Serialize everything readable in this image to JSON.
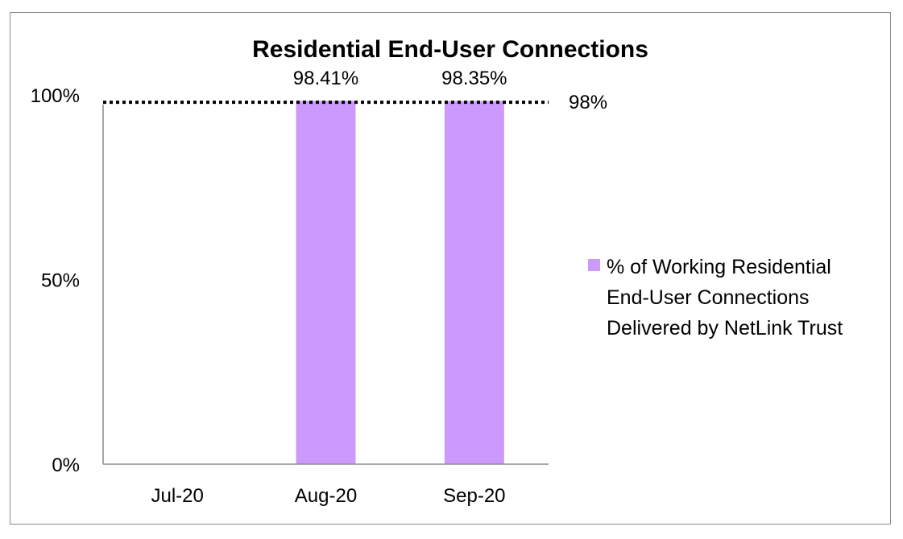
{
  "chart_data": {
    "type": "bar",
    "title": "Residential End-User Connections",
    "categories": [
      "Jul-20",
      "Aug-20",
      "Sep-20"
    ],
    "series": [
      {
        "name": "% of Working Residential End-User Connections Delivered by NetLink Trust",
        "name_lines": [
          "% of Working Residential",
          "End-User Connections",
          "Delivered by NetLink Trust"
        ],
        "values": [
          null,
          98.41,
          98.35
        ],
        "data_labels": [
          "",
          "98.41%",
          "98.35%"
        ],
        "color": "#cc99ff"
      }
    ],
    "ylim": [
      0,
      100
    ],
    "yticks": [
      0,
      50,
      100
    ],
    "ytick_labels": [
      "0%",
      "50%",
      "100%"
    ],
    "reference_line": {
      "value": 98,
      "label": "98%",
      "style": "dotted",
      "color": "#000000"
    },
    "legend_position": "right",
    "grid": false
  }
}
